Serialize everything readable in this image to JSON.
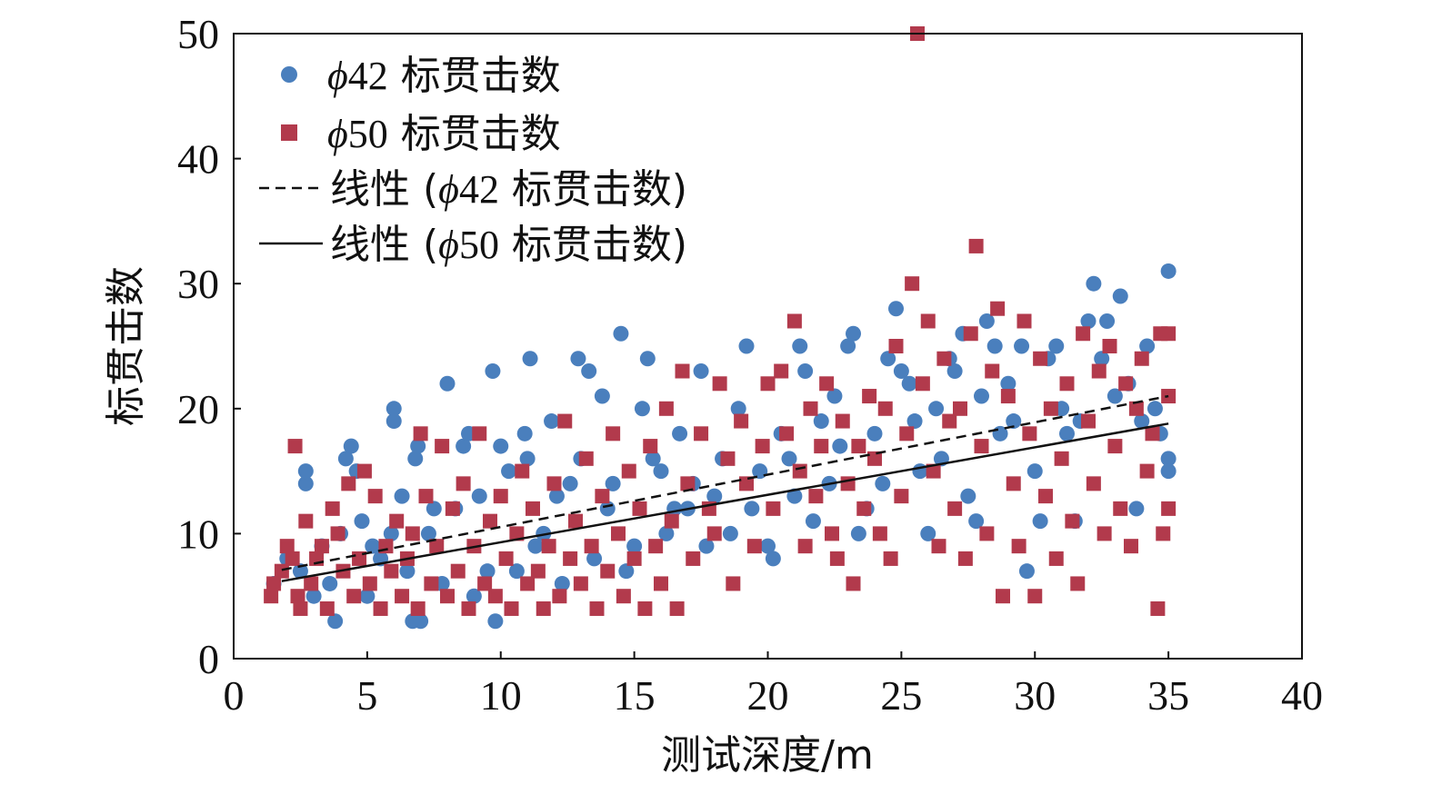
{
  "chart_data": {
    "type": "scatter",
    "xlabel": "测试深度/m",
    "ylabel": "标贯击数",
    "xlim": [
      0,
      40
    ],
    "ylim": [
      0,
      50
    ],
    "xticks": [
      0,
      5,
      10,
      15,
      20,
      25,
      30,
      35,
      40
    ],
    "yticks": [
      0,
      10,
      20,
      30,
      40,
      50
    ],
    "grid": false,
    "legend_position": "top-left",
    "colors": {
      "phi42": "#4a7fbd",
      "phi50": "#b23a4c",
      "trend": "#111111"
    },
    "series": [
      {
        "name": "φ42 标贯击数",
        "marker": "circle",
        "points": [
          [
            1.5,
            6
          ],
          [
            2,
            8
          ],
          [
            2.5,
            7
          ],
          [
            2.7,
            14
          ],
          [
            2.7,
            15
          ],
          [
            3,
            5
          ],
          [
            3.3,
            9
          ],
          [
            3.6,
            6
          ],
          [
            3.8,
            3
          ],
          [
            4,
            10
          ],
          [
            4.2,
            16
          ],
          [
            4.4,
            17
          ],
          [
            4.6,
            15
          ],
          [
            4.8,
            11
          ],
          [
            5,
            5
          ],
          [
            5.2,
            9
          ],
          [
            5.5,
            8
          ],
          [
            5.9,
            10
          ],
          [
            6,
            19
          ],
          [
            6,
            20
          ],
          [
            6.3,
            13
          ],
          [
            6.5,
            7
          ],
          [
            6.7,
            3
          ],
          [
            6.8,
            16
          ],
          [
            6.9,
            17
          ],
          [
            7,
            3
          ],
          [
            7.3,
            10
          ],
          [
            7.5,
            12
          ],
          [
            7.8,
            6
          ],
          [
            8,
            22
          ],
          [
            8.3,
            12
          ],
          [
            8.6,
            17
          ],
          [
            8.8,
            18
          ],
          [
            9,
            5
          ],
          [
            9.2,
            13
          ],
          [
            9.5,
            7
          ],
          [
            9.7,
            23
          ],
          [
            9.8,
            3
          ],
          [
            10,
            17
          ],
          [
            10.3,
            15
          ],
          [
            10.6,
            7
          ],
          [
            10.9,
            18
          ],
          [
            11,
            16
          ],
          [
            11.1,
            24
          ],
          [
            11.3,
            9
          ],
          [
            11.6,
            10
          ],
          [
            11.9,
            19
          ],
          [
            12.1,
            13
          ],
          [
            12.3,
            6
          ],
          [
            12.6,
            14
          ],
          [
            12.9,
            24
          ],
          [
            13,
            16
          ],
          [
            13.3,
            23
          ],
          [
            13.5,
            8
          ],
          [
            13.8,
            21
          ],
          [
            14,
            12
          ],
          [
            14.2,
            14
          ],
          [
            14.5,
            26
          ],
          [
            14.7,
            7
          ],
          [
            15,
            9
          ],
          [
            15.3,
            20
          ],
          [
            15.5,
            24
          ],
          [
            15.7,
            16
          ],
          [
            16,
            15
          ],
          [
            16.2,
            10
          ],
          [
            16.5,
            12
          ],
          [
            16.7,
            18
          ],
          [
            17,
            12
          ],
          [
            17.2,
            14
          ],
          [
            17.5,
            23
          ],
          [
            17.7,
            9
          ],
          [
            18,
            13
          ],
          [
            18.3,
            16
          ],
          [
            18.6,
            10
          ],
          [
            18.9,
            20
          ],
          [
            19.2,
            25
          ],
          [
            19.4,
            12
          ],
          [
            19.7,
            15
          ],
          [
            20,
            9
          ],
          [
            20.2,
            8
          ],
          [
            20.5,
            18
          ],
          [
            20.8,
            16
          ],
          [
            21,
            13
          ],
          [
            21.2,
            25
          ],
          [
            21.4,
            23
          ],
          [
            21.7,
            11
          ],
          [
            22,
            19
          ],
          [
            22.3,
            14
          ],
          [
            22.5,
            21
          ],
          [
            22.7,
            17
          ],
          [
            23,
            25
          ],
          [
            23.2,
            26
          ],
          [
            23.4,
            10
          ],
          [
            23.7,
            12
          ],
          [
            24,
            18
          ],
          [
            24.3,
            14
          ],
          [
            24.5,
            24
          ],
          [
            24.8,
            28
          ],
          [
            25,
            23
          ],
          [
            25.3,
            22
          ],
          [
            25.5,
            19
          ],
          [
            25.7,
            15
          ],
          [
            26,
            10
          ],
          [
            26.3,
            20
          ],
          [
            26.5,
            16
          ],
          [
            26.8,
            24
          ],
          [
            27,
            23
          ],
          [
            27.3,
            26
          ],
          [
            27.5,
            13
          ],
          [
            27.8,
            11
          ],
          [
            28,
            21
          ],
          [
            28.2,
            27
          ],
          [
            28.5,
            25
          ],
          [
            28.7,
            18
          ],
          [
            29,
            22
          ],
          [
            29.2,
            19
          ],
          [
            29.5,
            25
          ],
          [
            29.7,
            7
          ],
          [
            30,
            15
          ],
          [
            30.2,
            11
          ],
          [
            30.5,
            24
          ],
          [
            30.8,
            25
          ],
          [
            31,
            20
          ],
          [
            31.2,
            18
          ],
          [
            31.5,
            11
          ],
          [
            31.7,
            19
          ],
          [
            32,
            27
          ],
          [
            32.2,
            30
          ],
          [
            32.5,
            24
          ],
          [
            32.7,
            27
          ],
          [
            33,
            21
          ],
          [
            33.2,
            29
          ],
          [
            33.5,
            22
          ],
          [
            33.8,
            12
          ],
          [
            34,
            19
          ],
          [
            34.2,
            25
          ],
          [
            34.5,
            20
          ],
          [
            34.7,
            18
          ],
          [
            35,
            31
          ],
          [
            35,
            16
          ],
          [
            35,
            15
          ]
        ]
      },
      {
        "name": "φ50 标贯击数",
        "marker": "square",
        "points": [
          [
            1.4,
            5
          ],
          [
            1.5,
            6
          ],
          [
            1.8,
            7
          ],
          [
            2,
            9
          ],
          [
            2.2,
            8
          ],
          [
            2.3,
            17
          ],
          [
            2.4,
            5
          ],
          [
            2.5,
            4
          ],
          [
            2.7,
            11
          ],
          [
            2.9,
            6
          ],
          [
            3.1,
            8
          ],
          [
            3.3,
            9
          ],
          [
            3.5,
            4
          ],
          [
            3.7,
            12
          ],
          [
            3.9,
            10
          ],
          [
            4.1,
            7
          ],
          [
            4.3,
            14
          ],
          [
            4.5,
            5
          ],
          [
            4.7,
            8
          ],
          [
            4.9,
            15
          ],
          [
            5.1,
            6
          ],
          [
            5.3,
            13
          ],
          [
            5.5,
            4
          ],
          [
            5.7,
            9
          ],
          [
            5.9,
            7
          ],
          [
            6.1,
            11
          ],
          [
            6.3,
            5
          ],
          [
            6.5,
            8
          ],
          [
            6.7,
            10
          ],
          [
            6.9,
            4
          ],
          [
            7,
            18
          ],
          [
            7.2,
            13
          ],
          [
            7.4,
            6
          ],
          [
            7.6,
            9
          ],
          [
            7.8,
            17
          ],
          [
            8,
            5
          ],
          [
            8.2,
            12
          ],
          [
            8.4,
            7
          ],
          [
            8.6,
            14
          ],
          [
            8.8,
            4
          ],
          [
            9,
            9
          ],
          [
            9.2,
            18
          ],
          [
            9.4,
            6
          ],
          [
            9.6,
            11
          ],
          [
            9.8,
            5
          ],
          [
            10,
            13
          ],
          [
            10.2,
            8
          ],
          [
            10.4,
            4
          ],
          [
            10.6,
            10
          ],
          [
            10.8,
            15
          ],
          [
            11,
            6
          ],
          [
            11.2,
            12
          ],
          [
            11.4,
            7
          ],
          [
            11.6,
            4
          ],
          [
            11.8,
            9
          ],
          [
            12,
            14
          ],
          [
            12.2,
            5
          ],
          [
            12.4,
            19
          ],
          [
            12.6,
            8
          ],
          [
            12.8,
            11
          ],
          [
            13,
            6
          ],
          [
            13.2,
            16
          ],
          [
            13.4,
            9
          ],
          [
            13.6,
            4
          ],
          [
            13.8,
            13
          ],
          [
            14,
            7
          ],
          [
            14.2,
            18
          ],
          [
            14.4,
            10
          ],
          [
            14.6,
            5
          ],
          [
            14.8,
            15
          ],
          [
            15,
            8
          ],
          [
            15.2,
            12
          ],
          [
            15.4,
            4
          ],
          [
            15.6,
            17
          ],
          [
            15.8,
            9
          ],
          [
            16,
            6
          ],
          [
            16.2,
            20
          ],
          [
            16.4,
            11
          ],
          [
            16.6,
            4
          ],
          [
            16.8,
            23
          ],
          [
            17,
            14
          ],
          [
            17.2,
            8
          ],
          [
            17.5,
            18
          ],
          [
            17.8,
            12
          ],
          [
            18,
            10
          ],
          [
            18.2,
            22
          ],
          [
            18.5,
            16
          ],
          [
            18.7,
            6
          ],
          [
            19,
            19
          ],
          [
            19.2,
            14
          ],
          [
            19.5,
            9
          ],
          [
            19.8,
            17
          ],
          [
            20,
            22
          ],
          [
            20.2,
            12
          ],
          [
            20.5,
            23
          ],
          [
            20.7,
            18
          ],
          [
            21,
            27
          ],
          [
            21.2,
            15
          ],
          [
            21.4,
            9
          ],
          [
            21.6,
            20
          ],
          [
            21.8,
            13
          ],
          [
            22,
            17
          ],
          [
            22.2,
            22
          ],
          [
            22.4,
            10
          ],
          [
            22.6,
            8
          ],
          [
            22.8,
            19
          ],
          [
            23,
            14
          ],
          [
            23.2,
            6
          ],
          [
            23.4,
            17
          ],
          [
            23.6,
            12
          ],
          [
            23.8,
            21
          ],
          [
            24,
            16
          ],
          [
            24.2,
            10
          ],
          [
            24.4,
            20
          ],
          [
            24.6,
            8
          ],
          [
            24.8,
            25
          ],
          [
            25,
            13
          ],
          [
            25.2,
            18
          ],
          [
            25.4,
            30
          ],
          [
            25.6,
            50
          ],
          [
            25.8,
            22
          ],
          [
            26,
            27
          ],
          [
            26.2,
            15
          ],
          [
            26.4,
            9
          ],
          [
            26.6,
            24
          ],
          [
            26.8,
            19
          ],
          [
            27,
            12
          ],
          [
            27.2,
            20
          ],
          [
            27.4,
            8
          ],
          [
            27.6,
            26
          ],
          [
            27.8,
            33
          ],
          [
            28,
            17
          ],
          [
            28.2,
            10
          ],
          [
            28.4,
            23
          ],
          [
            28.6,
            28
          ],
          [
            28.8,
            5
          ],
          [
            29,
            21
          ],
          [
            29.2,
            14
          ],
          [
            29.4,
            9
          ],
          [
            29.6,
            27
          ],
          [
            29.8,
            18
          ],
          [
            30,
            5
          ],
          [
            30.2,
            24
          ],
          [
            30.4,
            13
          ],
          [
            30.6,
            20
          ],
          [
            30.8,
            8
          ],
          [
            31,
            16
          ],
          [
            31.2,
            22
          ],
          [
            31.4,
            11
          ],
          [
            31.6,
            6
          ],
          [
            31.8,
            26
          ],
          [
            32,
            19
          ],
          [
            32.2,
            14
          ],
          [
            32.4,
            23
          ],
          [
            32.6,
            10
          ],
          [
            32.8,
            25
          ],
          [
            33,
            17
          ],
          [
            33.2,
            12
          ],
          [
            33.4,
            22
          ],
          [
            33.6,
            9
          ],
          [
            33.8,
            20
          ],
          [
            34,
            24
          ],
          [
            34.2,
            15
          ],
          [
            34.4,
            18
          ],
          [
            34.6,
            4
          ],
          [
            34.7,
            26
          ],
          [
            34.8,
            10
          ],
          [
            35,
            21
          ],
          [
            35,
            12
          ],
          [
            35,
            26
          ]
        ]
      }
    ],
    "trendlines": [
      {
        "name": "线性 (φ42 标贯击数)",
        "style": "dashed",
        "x": [
          1.8,
          35
        ],
        "y": [
          7.1,
          21
        ]
      },
      {
        "name": "线性 (φ50 标贯击数)",
        "style": "solid",
        "x": [
          1.8,
          35
        ],
        "y": [
          6.2,
          18.8
        ]
      }
    ],
    "legend": [
      {
        "marker": "circle",
        "phi": "ϕ",
        "num": "42",
        "label": " 标贯击数"
      },
      {
        "marker": "square",
        "phi": "ϕ",
        "num": "50",
        "label": " 标贯击数"
      },
      {
        "marker": "dashed",
        "prefix": "线性 (",
        "phi": "ϕ",
        "num": "42",
        "label": " 标贯击数)"
      },
      {
        "marker": "solid",
        "prefix": "线性 (",
        "phi": "ϕ",
        "num": "50",
        "label": " 标贯击数)"
      }
    ]
  }
}
